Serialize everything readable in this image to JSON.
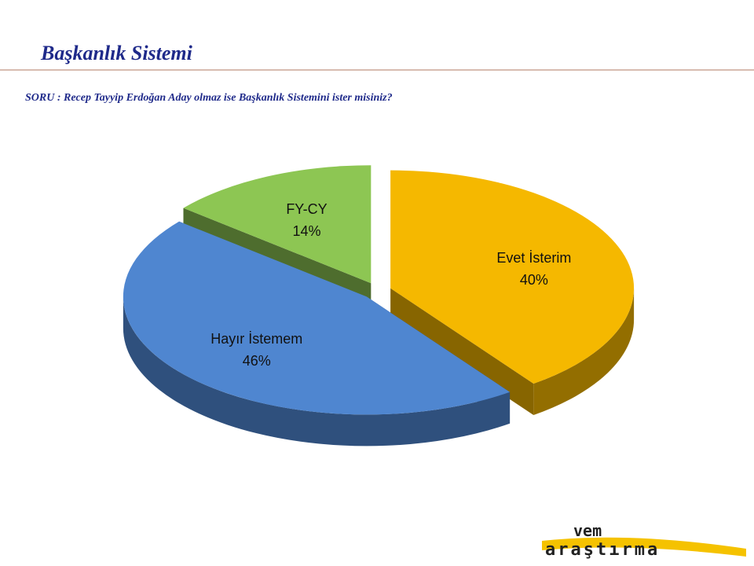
{
  "chart_data": {
    "type": "pie3d",
    "title": "Başkanlık Sistemi",
    "subtitle": "SORU : Recep Tayyip Erdoğan Aday olmaz ise Başkanlık Sistemini ister misiniz?",
    "categories": [
      "Evet İsterim",
      "Hayır İstemem",
      "FY-CY"
    ],
    "values": [
      40,
      46,
      14
    ],
    "value_labels": [
      "40%",
      "46%",
      "14%"
    ],
    "colors": [
      "#f5b800",
      "#4f86d0",
      "#8dc653"
    ]
  },
  "logo": {
    "top": "vem",
    "bottom": "araştırma"
  }
}
